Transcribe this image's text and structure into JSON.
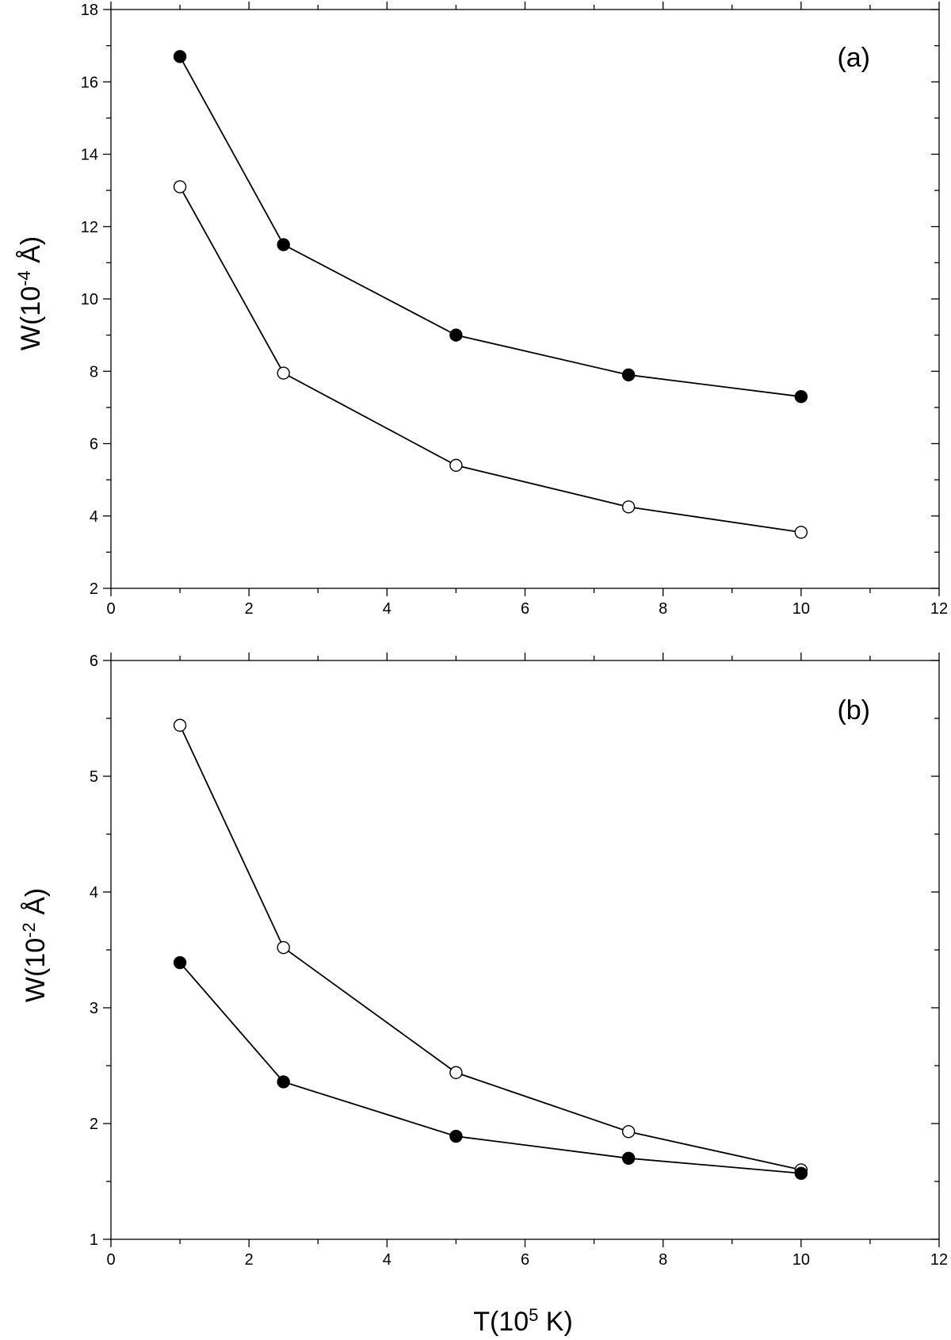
{
  "chart_data": [
    {
      "type": "line",
      "panel_label": "(a)",
      "xlabel_parts": {
        "base": "T(10",
        "sup": "5",
        "tail": " K)"
      },
      "ylabel_parts": {
        "base": "W(10",
        "sup": "-4",
        "tail": " Å)"
      },
      "xlim": [
        0,
        12
      ],
      "ylim": [
        2,
        18
      ],
      "xticks": [
        0,
        2,
        4,
        6,
        8,
        10,
        12
      ],
      "yticks": [
        2,
        4,
        6,
        8,
        10,
        12,
        14,
        16,
        18
      ],
      "grid": false,
      "x": [
        1,
        2.5,
        5,
        7.5,
        10
      ],
      "series": [
        {
          "name": "filled circles",
          "marker": "filled",
          "values": [
            16.7,
            11.5,
            9.0,
            7.9,
            7.3
          ]
        },
        {
          "name": "open circles",
          "marker": "open",
          "values": [
            13.1,
            7.95,
            5.4,
            4.25,
            3.55
          ]
        }
      ]
    },
    {
      "type": "line",
      "panel_label": "(b)",
      "xlabel_parts": {
        "base": "T(10",
        "sup": "5",
        "tail": " K)"
      },
      "ylabel_parts": {
        "base": "W(10",
        "sup": "-2",
        "tail": " Å)"
      },
      "xlim": [
        0,
        12
      ],
      "ylim": [
        1,
        6
      ],
      "xticks": [
        0,
        2,
        4,
        6,
        8,
        10,
        12
      ],
      "yticks": [
        1,
        2,
        3,
        4,
        5,
        6
      ],
      "grid": false,
      "x": [
        1,
        2.5,
        5,
        7.5,
        10
      ],
      "series": [
        {
          "name": "open circles",
          "marker": "open",
          "values": [
            5.44,
            3.52,
            2.44,
            1.93,
            1.6
          ]
        },
        {
          "name": "filled circles",
          "marker": "filled",
          "values": [
            3.39,
            2.36,
            1.89,
            1.7,
            1.57
          ]
        }
      ]
    }
  ],
  "shared_xlabel": {
    "base": "T(10",
    "sup": "5",
    "tail": " K)"
  }
}
